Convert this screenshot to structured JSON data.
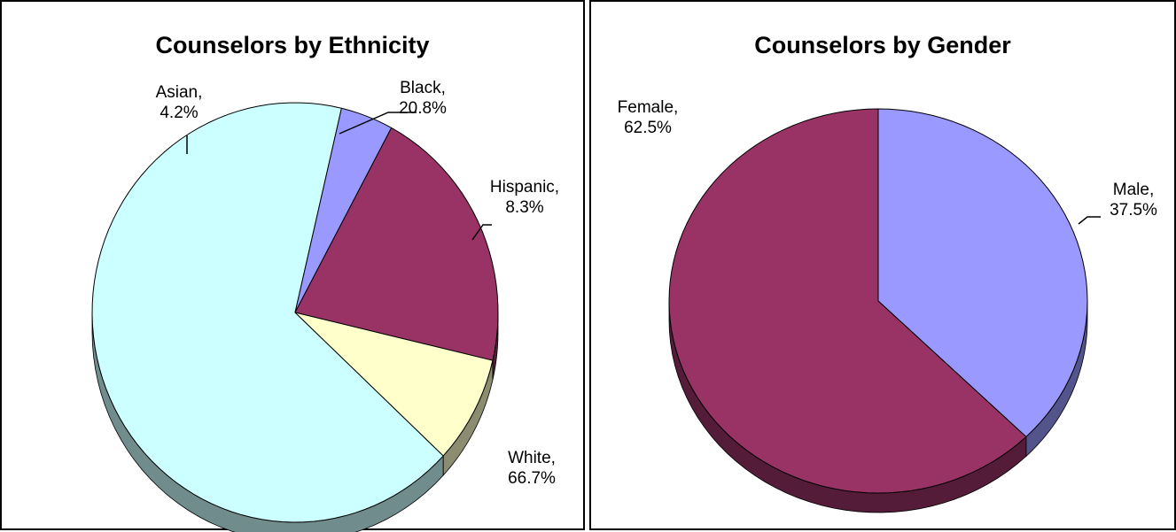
{
  "chart_data": [
    {
      "type": "pie",
      "title": "Counselors by Ethnicity",
      "slices": [
        {
          "name": "White",
          "value": 66.7,
          "label_name": "White,",
          "label_value": "66.7%",
          "color": "#ccffff"
        },
        {
          "name": "Asian",
          "value": 4.2,
          "label_name": "Asian,",
          "label_value": "4.2%",
          "color": "#9999ff"
        },
        {
          "name": "Black",
          "value": 20.8,
          "label_name": "Black,",
          "label_value": "20.8%",
          "color": "#993366"
        },
        {
          "name": "Hispanic",
          "value": 8.3,
          "label_name": "Hispanic,",
          "label_value": "8.3%",
          "color": "#ffffcc"
        }
      ]
    },
    {
      "type": "pie",
      "title": "Counselors by Gender",
      "slices": [
        {
          "name": "Male",
          "value": 37.5,
          "label_name": "Male,",
          "label_value": "37.5%",
          "color": "#9999ff"
        },
        {
          "name": "Female",
          "value": 62.5,
          "label_name": "Female,",
          "label_value": "62.5%",
          "color": "#993366"
        }
      ]
    }
  ]
}
